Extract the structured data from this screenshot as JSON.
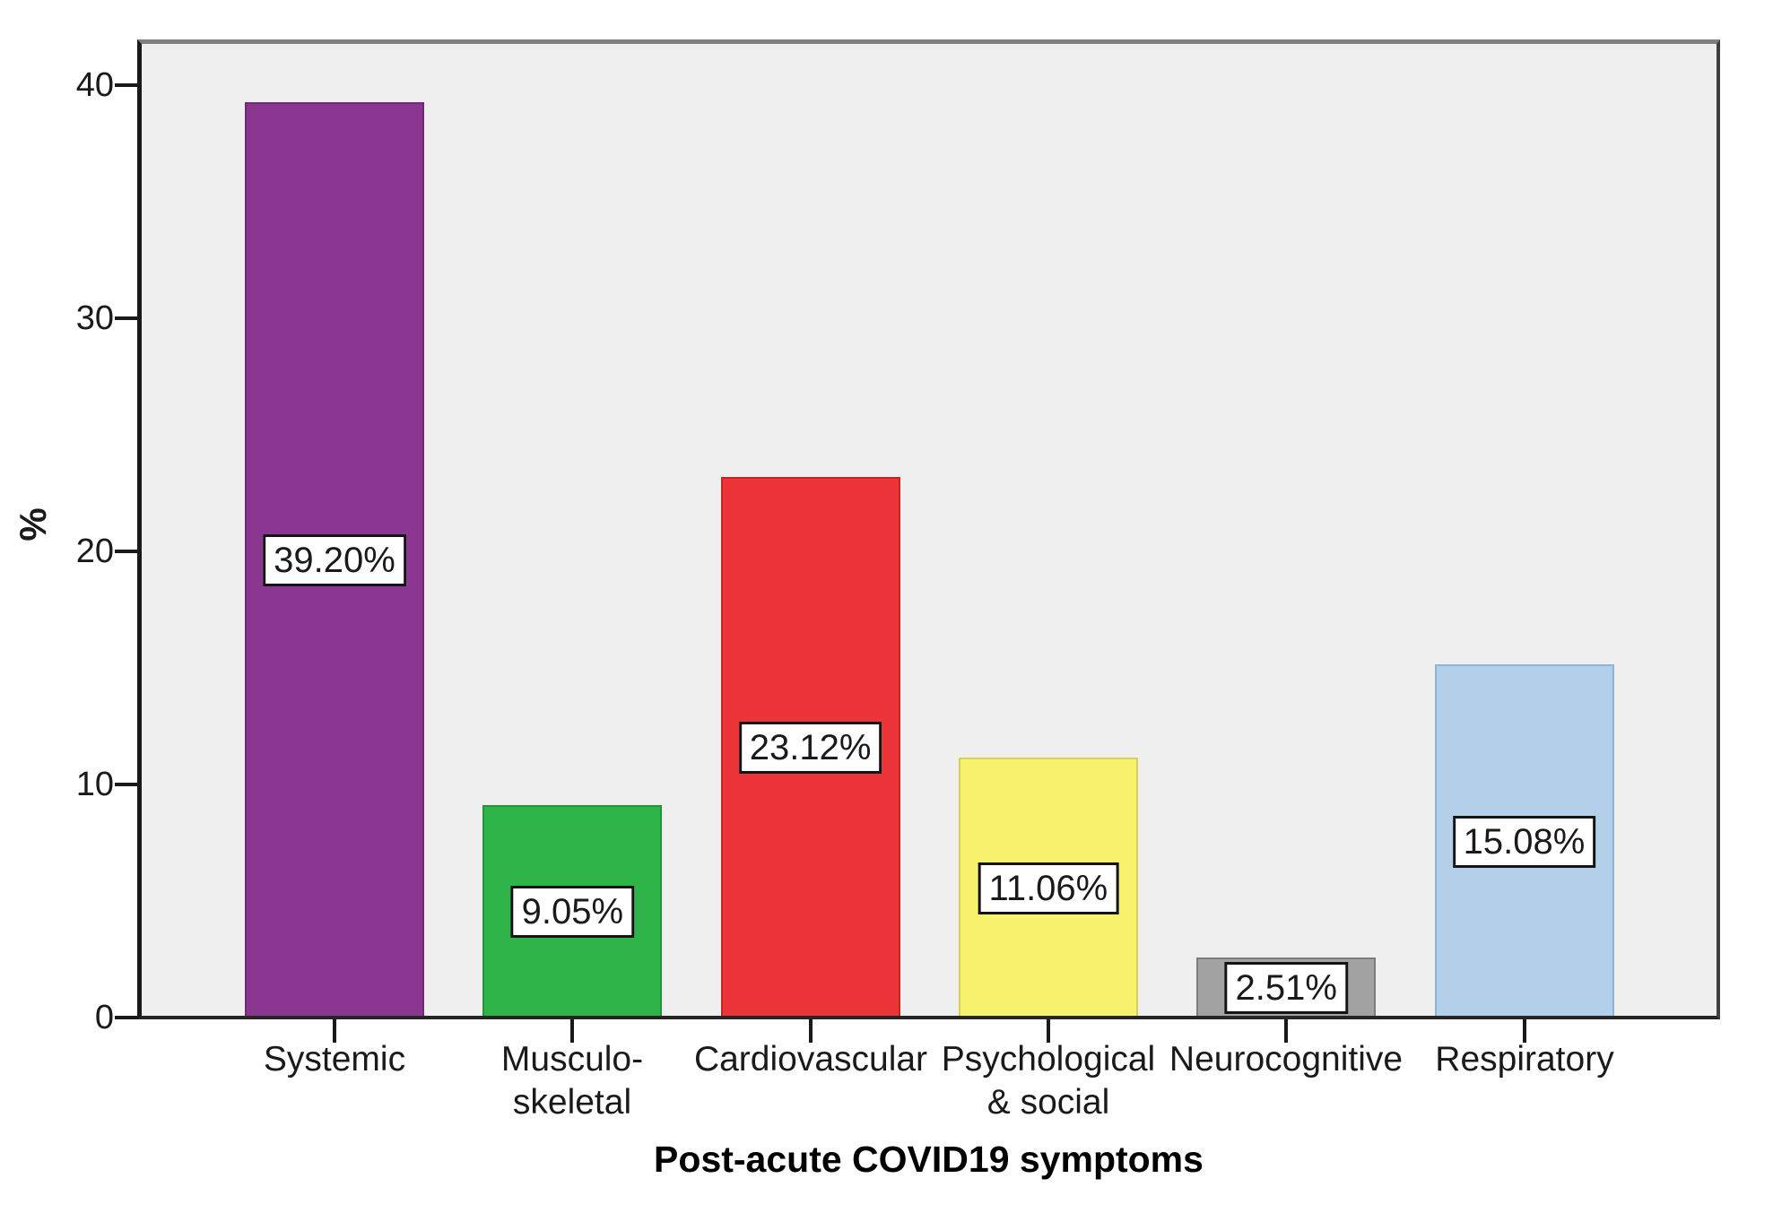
{
  "chart_data": {
    "type": "bar",
    "title": "",
    "xlabel": "Post-acute COVID19 symptoms",
    "ylabel": "%",
    "categories": [
      "Systemic",
      "Musculo-\nskeletal",
      "Cardiovascular",
      "Psychological\n& social",
      "Neurocognitive",
      "Respiratory"
    ],
    "values": [
      39.2,
      9.05,
      23.12,
      11.06,
      2.51,
      15.08
    ],
    "value_labels": [
      "39.20%",
      "9.05%",
      "23.12%",
      "11.06%",
      "2.51%",
      "15.08%"
    ],
    "bar_colors": [
      "#8B3690",
      "#2FB44A",
      "#EC3538",
      "#F7F26E",
      "#A3A3A3",
      "#B3CFEA"
    ],
    "bar_border_colors": [
      "#702B76",
      "#239439",
      "#C52427",
      "#D6D054",
      "#7D7D7D",
      "#8EB4D8"
    ],
    "ytick_values": [
      0,
      10,
      20,
      30,
      40
    ],
    "ytick_labels": [
      "0",
      "10",
      "20",
      "30",
      "40"
    ],
    "ylim": [
      0,
      42
    ],
    "grid": false,
    "legend": false,
    "plot_background": "#EFEFEF",
    "value_label_box": {
      "background": "#FFFFFF",
      "border": "#141414"
    }
  }
}
